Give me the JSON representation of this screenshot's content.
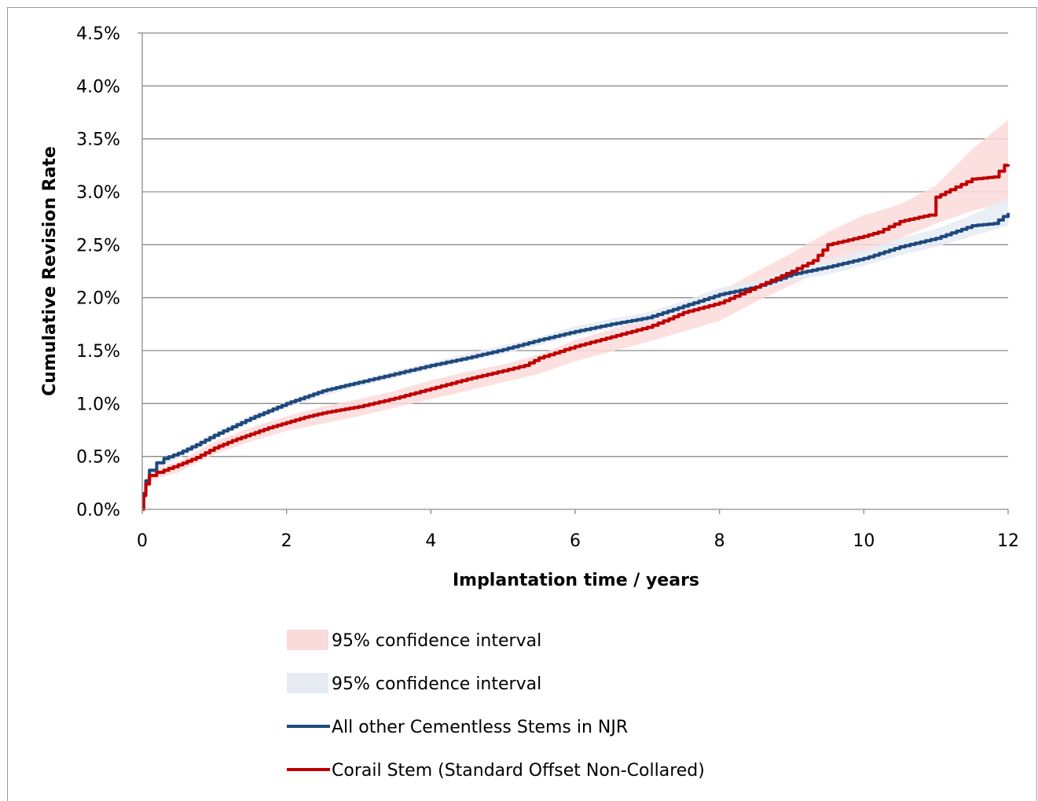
{
  "chart_data": {
    "type": "line",
    "title": "",
    "xlabel": "Implantation time  / years",
    "ylabel": "Cumulative Revision Rate",
    "xlim": [
      0,
      12
    ],
    "ylim": [
      0,
      4.5
    ],
    "x_ticks": [
      "0",
      "2",
      "4",
      "6",
      "8",
      "10",
      "12"
    ],
    "y_ticks": [
      "0.0%",
      "0.5%",
      "1.0%",
      "1.5%",
      "2.0%",
      "2.5%",
      "3.0%",
      "3.5%",
      "4.0%",
      "4.5%"
    ],
    "grid": true,
    "legend_position": "bottom",
    "legend": [
      {
        "label": "95% confidence interval",
        "kind": "band",
        "color": "#fbdada"
      },
      {
        "label": "95% confidence interval",
        "kind": "band",
        "color": "#e6ebf3"
      },
      {
        "label": "All other Cementless Stems in NJR",
        "kind": "line",
        "color": "#1f497d"
      },
      {
        "label": "Corail Stem (Standard Offset Non-Collared)",
        "kind": "line",
        "color": "#c00000"
      }
    ],
    "bands": [
      {
        "legend_index": 0,
        "color": "#fbdada",
        "x": [
          0,
          0.05,
          0.1,
          0.3,
          0.5,
          1,
          1.5,
          2,
          2.5,
          3,
          3.5,
          4,
          4.5,
          5,
          5.5,
          6,
          6.5,
          7,
          7.5,
          8,
          8.5,
          9,
          9.5,
          10,
          10.5,
          11,
          11.5,
          12
        ],
        "lower": [
          0,
          0.18,
          0.26,
          0.31,
          0.35,
          0.52,
          0.64,
          0.74,
          0.81,
          0.88,
          0.96,
          1.04,
          1.12,
          1.2,
          1.28,
          1.4,
          1.49,
          1.58,
          1.68,
          1.78,
          1.96,
          2.12,
          2.28,
          2.42,
          2.56,
          2.7,
          2.82,
          2.9
        ],
        "upper": [
          0,
          0.28,
          0.36,
          0.41,
          0.45,
          0.64,
          0.77,
          0.88,
          0.97,
          1.04,
          1.12,
          1.22,
          1.3,
          1.37,
          1.46,
          1.6,
          1.7,
          1.8,
          1.92,
          2.06,
          2.24,
          2.42,
          2.62,
          2.78,
          2.88,
          3.06,
          3.4,
          3.68
        ]
      },
      {
        "legend_index": 1,
        "color": "#e6ebf3",
        "x": [
          0,
          0.05,
          0.1,
          0.3,
          0.5,
          1,
          1.5,
          2,
          2.5,
          3,
          3.5,
          4,
          4.5,
          5,
          5.5,
          6,
          6.5,
          7,
          7.5,
          8,
          8.5,
          9,
          9.5,
          10,
          10.5,
          11,
          11.5,
          12
        ],
        "lower": [
          0,
          0.2,
          0.3,
          0.42,
          0.48,
          0.67,
          0.83,
          0.96,
          1.07,
          1.16,
          1.24,
          1.32,
          1.4,
          1.47,
          1.55,
          1.64,
          1.71,
          1.77,
          1.87,
          1.98,
          2.06,
          2.16,
          2.22,
          2.3,
          2.4,
          2.48,
          2.58,
          2.68
        ],
        "upper": [
          0,
          0.24,
          0.34,
          0.47,
          0.54,
          0.73,
          0.89,
          1.02,
          1.13,
          1.22,
          1.31,
          1.39,
          1.47,
          1.55,
          1.63,
          1.73,
          1.8,
          1.86,
          1.97,
          2.09,
          2.16,
          2.28,
          2.36,
          2.45,
          2.56,
          2.65,
          2.78,
          2.94
        ]
      }
    ],
    "series": [
      {
        "name": "All other Cementless Stems in NJR",
        "color": "#1f497d",
        "x": [
          0,
          0.02,
          0.05,
          0.1,
          0.2,
          0.3,
          0.5,
          0.75,
          1,
          1.25,
          1.5,
          1.75,
          2,
          2.25,
          2.5,
          2.75,
          3,
          3.5,
          4,
          4.5,
          5,
          5.5,
          6,
          6.5,
          7,
          7.5,
          8,
          8.5,
          9,
          9.5,
          10,
          10.5,
          11,
          11.5,
          11.8,
          12
        ],
        "y": [
          0,
          0.15,
          0.27,
          0.37,
          0.44,
          0.48,
          0.53,
          0.61,
          0.7,
          0.78,
          0.86,
          0.93,
          1.0,
          1.06,
          1.12,
          1.16,
          1.2,
          1.28,
          1.36,
          1.43,
          1.51,
          1.6,
          1.68,
          1.75,
          1.81,
          1.92,
          2.03,
          2.1,
          2.22,
          2.29,
          2.37,
          2.48,
          2.56,
          2.68,
          2.7,
          2.8
        ]
      },
      {
        "name": "Corail Stem (Standard Offset Non-Collared)",
        "color": "#c00000",
        "x": [
          0,
          0.02,
          0.05,
          0.1,
          0.2,
          0.3,
          0.5,
          0.75,
          1,
          1.25,
          1.5,
          1.75,
          2,
          2.25,
          2.5,
          2.75,
          3,
          3.5,
          4,
          4.5,
          5,
          5.3,
          5.5,
          6,
          6.5,
          7,
          7.3,
          7.5,
          8,
          8.5,
          9,
          9.3,
          9.5,
          10,
          10.2,
          10.5,
          10.9,
          11,
          11.2,
          11.5,
          11.8,
          11.95,
          12
        ],
        "y": [
          0,
          0.13,
          0.24,
          0.32,
          0.35,
          0.37,
          0.42,
          0.49,
          0.58,
          0.65,
          0.71,
          0.77,
          0.82,
          0.87,
          0.91,
          0.94,
          0.97,
          1.05,
          1.14,
          1.23,
          1.31,
          1.36,
          1.43,
          1.54,
          1.63,
          1.72,
          1.8,
          1.86,
          1.95,
          2.1,
          2.25,
          2.35,
          2.5,
          2.58,
          2.62,
          2.72,
          2.78,
          2.95,
          3.02,
          3.12,
          3.14,
          3.25,
          3.26
        ]
      }
    ]
  }
}
